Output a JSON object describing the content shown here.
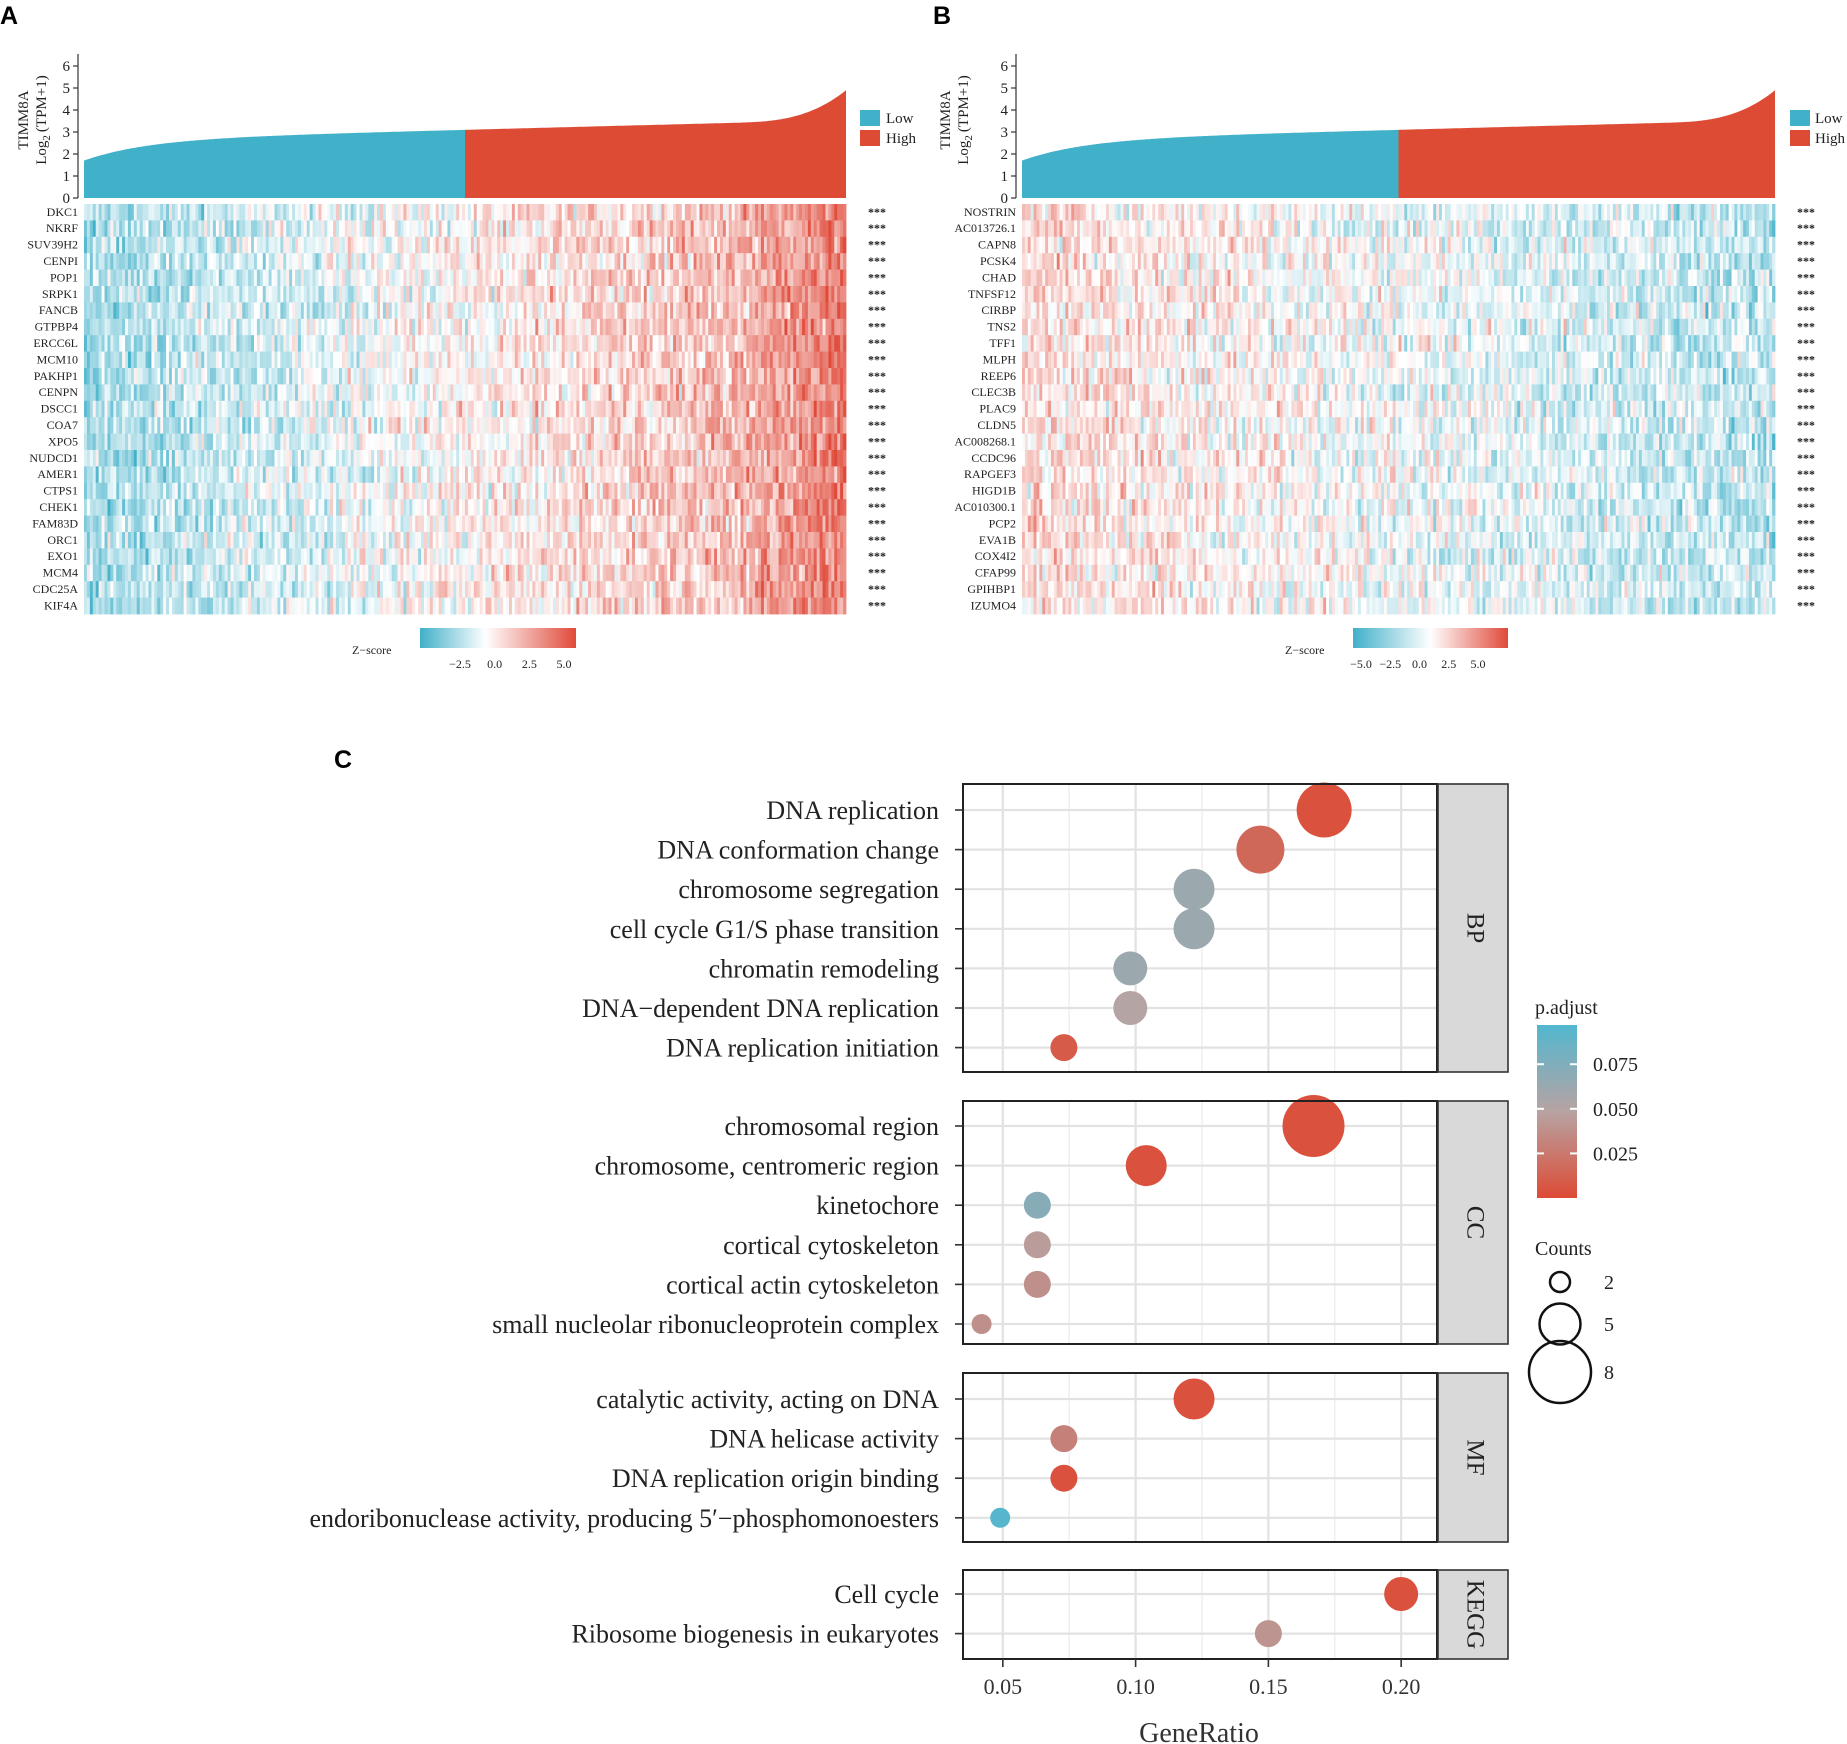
{
  "chart_data": [
    {
      "panel": "A",
      "type": "heatmap",
      "bar_ylabel_line1": "TIMM8A",
      "bar_ylabel_line2": "Log",
      "bar_ylabel_sub": "2",
      "bar_ylabel_line3": "(TPM+1)",
      "bar_yticks": [
        "0",
        "1",
        "2",
        "3",
        "4",
        "5",
        "6"
      ],
      "ylim": [
        0,
        6
      ],
      "low_fraction": 0.5,
      "legend": [
        "Low",
        "High"
      ],
      "colors": {
        "low": "#41b0c9",
        "high": "#dd4b35"
      },
      "genes": [
        "DKC1",
        "NKRF",
        "SUV39H2",
        "CENPI",
        "POP1",
        "SRPK1",
        "FANCB",
        "GTPBP4",
        "ERCC6L",
        "MCM10",
        "PAKHP1",
        "CENPN",
        "DSCC1",
        "COA7",
        "XPO5",
        "NUDCD1",
        "AMER1",
        "CTPS1",
        "CHEK1",
        "FAM83D",
        "ORC1",
        "EXO1",
        "MCM4",
        "CDC25A",
        "KIF4A"
      ],
      "significance": "***",
      "trend": "positive",
      "zscore_label": "Z−score",
      "zscore_ticks": [
        "−2.5",
        "0.0",
        "2.5",
        "5.0"
      ]
    },
    {
      "panel": "B",
      "type": "heatmap",
      "bar_ylabel_line1": "TIMM8A",
      "bar_ylabel_line2": "Log",
      "bar_ylabel_sub": "2",
      "bar_ylabel_line3": "(TPM+1)",
      "bar_yticks": [
        "0",
        "1",
        "2",
        "3",
        "4",
        "5",
        "6"
      ],
      "ylim": [
        0,
        6
      ],
      "low_fraction": 0.5,
      "legend": [
        "Low",
        "High"
      ],
      "colors": {
        "low": "#41b0c9",
        "high": "#dd4b35"
      },
      "genes": [
        "NOSTRIN",
        "AC013726.1",
        "CAPN8",
        "PCSK4",
        "CHAD",
        "TNFSF12",
        "CIRBP",
        "TNS2",
        "TFF1",
        "MLPH",
        "REEP6",
        "CLEC3B",
        "PLAC9",
        "CLDN5",
        "AC008268.1",
        "CCDC96",
        "RAPGEF3",
        "HIGD1B",
        "AC010300.1",
        "PCP2",
        "EVA1B",
        "COX4I2",
        "CFAP99",
        "GPIHBP1",
        "IZUMO4"
      ],
      "significance": "***",
      "trend": "negative",
      "zscore_label": "Z−score",
      "zscore_ticks": [
        "−5.0",
        "−2.5",
        "0.0",
        "2.5",
        "5.0"
      ]
    },
    {
      "panel": "C",
      "type": "scatter",
      "xlabel": "GeneRatio",
      "xlim": [
        0.035,
        0.2135
      ],
      "xticks": [
        0.05,
        0.1,
        0.15,
        0.2
      ],
      "xtick_labels": [
        "0.05",
        "0.10",
        "0.15",
        "0.20"
      ],
      "facets": [
        {
          "name": "BP",
          "terms": [
            {
              "term": "DNA replication",
              "x": 0.171,
              "count": 7,
              "padj": 0.004
            },
            {
              "term": "DNA conformation change",
              "x": 0.147,
              "count": 6,
              "padj": 0.016
            },
            {
              "term": "chromosome segregation",
              "x": 0.122,
              "count": 5,
              "padj": 0.062
            },
            {
              "term": "cell cycle G1/S phase transition",
              "x": 0.122,
              "count": 5,
              "padj": 0.062
            },
            {
              "term": "chromatin remodeling",
              "x": 0.098,
              "count": 4,
              "padj": 0.062
            },
            {
              "term": "DNA−dependent DNA replication",
              "x": 0.098,
              "count": 4,
              "padj": 0.05
            },
            {
              "term": "DNA replication initiation",
              "x": 0.073,
              "count": 3,
              "padj": 0.009
            }
          ]
        },
        {
          "name": "CC",
          "terms": [
            {
              "term": "chromosomal region",
              "x": 0.167,
              "count": 8,
              "padj": 0.004
            },
            {
              "term": "chromosome, centromeric region",
              "x": 0.104,
              "count": 5,
              "padj": 0.004
            },
            {
              "term": "kinetochore",
              "x": 0.063,
              "count": 3,
              "padj": 0.071
            },
            {
              "term": "cortical cytoskeleton",
              "x": 0.063,
              "count": 3,
              "padj": 0.045
            },
            {
              "term": "cortical actin cytoskeleton",
              "x": 0.063,
              "count": 3,
              "padj": 0.038
            },
            {
              "term": "small nucleolar ribonucleoprotein complex",
              "x": 0.042,
              "count": 2,
              "padj": 0.038
            }
          ]
        },
        {
          "name": "MF",
          "terms": [
            {
              "term": "catalytic activity, acting on DNA",
              "x": 0.122,
              "count": 5,
              "padj": 0.004
            },
            {
              "term": "DNA helicase activity",
              "x": 0.073,
              "count": 3,
              "padj": 0.03
            },
            {
              "term": "DNA replication origin binding",
              "x": 0.073,
              "count": 3,
              "padj": 0.004
            },
            {
              "term": "endoribonuclease activity, producing 5′−phosphomonoesters",
              "x": 0.049,
              "count": 2,
              "padj": 0.095
            }
          ]
        },
        {
          "name": "KEGG",
          "terms": [
            {
              "term": "Cell cycle",
              "x": 0.2,
              "count": 4,
              "padj": 0.004
            },
            {
              "term": "Ribosome biogenesis in eukaryotes",
              "x": 0.15,
              "count": 3,
              "padj": 0.04
            }
          ]
        }
      ],
      "padj_legend_title": "p.adjust",
      "padj_range": [
        0.0,
        0.097
      ],
      "padj_ticks": [
        0.075,
        0.05,
        0.025
      ],
      "padj_tick_labels": [
        "0.075",
        "0.050",
        "0.025"
      ],
      "padj_colors": {
        "low": "#dd4b35",
        "mid": "#b7a3a3",
        "high": "#52b7cf"
      },
      "counts_legend_title": "Counts",
      "counts_legend": [
        2,
        5,
        8
      ],
      "counts_legend_labels": [
        "2",
        "5",
        "8"
      ]
    }
  ]
}
